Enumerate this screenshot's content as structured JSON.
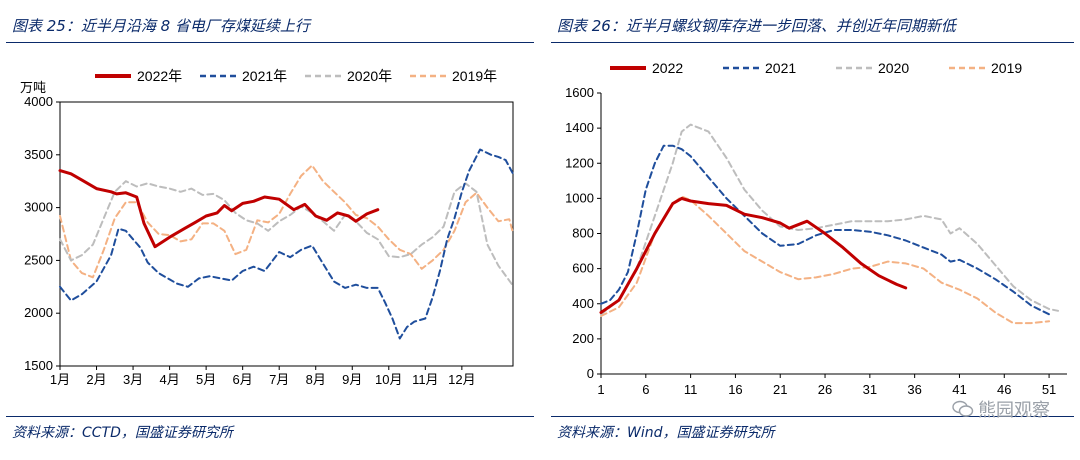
{
  "figures": {
    "left": {
      "title": "图表 25：近半月沿海 8 省电厂存煤延续上行",
      "source": "资料来源：CCTD，国盛证券研究所"
    },
    "right": {
      "title": "图表 26：近半月螺纹钢库存进一步回落、并创近年同期新低",
      "source": "资料来源：Wind，国盛证券研究所"
    }
  },
  "watermark": "熊园观察",
  "colors": {
    "2022": "#c00000",
    "2021": "#1f4e9c",
    "2020": "#bdbdbd",
    "2019": "#f4b183",
    "navy": "#0a2a6a"
  },
  "chart_data": [
    {
      "id": "coal",
      "type": "line",
      "title": "近半月沿海8省电厂存煤延续上行",
      "ylabel": "万吨",
      "ylim": [
        1500,
        4000
      ],
      "yticks": [
        1500,
        2000,
        2500,
        3000,
        3500,
        4000
      ],
      "xlim": [
        0,
        12.4
      ],
      "categories": [
        "1月",
        "2月",
        "3月",
        "4月",
        "5月",
        "6月",
        "7月",
        "8月",
        "9月",
        "10月",
        "11月",
        "12月"
      ],
      "legend": [
        "2022年",
        "2021年",
        "2020年",
        "2019年"
      ],
      "series": [
        {
          "name": "2022年",
          "style": "solid",
          "x": [
            0,
            0.3,
            0.6,
            1.0,
            1.4,
            1.55,
            1.8,
            2.1,
            2.3,
            2.6,
            3.0,
            3.4,
            3.7,
            4.0,
            4.3,
            4.5,
            4.7,
            5.0,
            5.3,
            5.6,
            6.0,
            6.4,
            6.7,
            7.0,
            7.3,
            7.6,
            7.9,
            8.1,
            8.4,
            8.7
          ],
          "y": [
            3350,
            3320,
            3260,
            3180,
            3150,
            3130,
            3140,
            3100,
            2850,
            2630,
            2720,
            2800,
            2860,
            2920,
            2950,
            3020,
            2970,
            3040,
            3060,
            3100,
            3080,
            2980,
            3030,
            2920,
            2880,
            2950,
            2920,
            2870,
            2940,
            2980
          ]
        },
        {
          "name": "2021年",
          "style": "dash",
          "x": [
            0,
            0.3,
            0.6,
            1.0,
            1.4,
            1.6,
            1.8,
            2.0,
            2.2,
            2.4,
            2.7,
            3.0,
            3.2,
            3.5,
            3.8,
            4.1,
            4.4,
            4.7,
            5.0,
            5.3,
            5.6,
            6.0,
            6.3,
            6.6,
            6.9,
            7.2,
            7.5,
            7.8,
            8.1,
            8.4,
            8.7,
            8.9,
            9.1,
            9.3,
            9.5,
            9.7,
            10.0,
            10.2,
            10.4,
            10.6,
            10.8,
            11.0,
            11.2,
            11.5,
            11.8,
            12.0,
            12.2,
            12.4
          ],
          "y": [
            2250,
            2120,
            2180,
            2300,
            2550,
            2800,
            2780,
            2700,
            2620,
            2480,
            2380,
            2320,
            2280,
            2250,
            2330,
            2350,
            2330,
            2310,
            2400,
            2440,
            2400,
            2580,
            2530,
            2600,
            2640,
            2470,
            2300,
            2240,
            2270,
            2240,
            2240,
            2100,
            1950,
            1760,
            1870,
            1920,
            1950,
            2150,
            2400,
            2700,
            2900,
            3150,
            3350,
            3550,
            3500,
            3480,
            3450,
            3320
          ]
        },
        {
          "name": "2020年",
          "style": "dash",
          "x": [
            0,
            0.3,
            0.6,
            0.9,
            1.2,
            1.5,
            1.8,
            2.1,
            2.4,
            2.7,
            3.0,
            3.3,
            3.6,
            3.9,
            4.2,
            4.5,
            4.8,
            5.1,
            5.4,
            5.7,
            6.0,
            6.3,
            6.6,
            6.9,
            7.2,
            7.5,
            7.8,
            8.1,
            8.4,
            8.7,
            9.0,
            9.3,
            9.6,
            9.9,
            10.2,
            10.5,
            10.8,
            11.1,
            11.4,
            11.7,
            12.0,
            12.4
          ],
          "y": [
            2700,
            2500,
            2550,
            2650,
            2900,
            3150,
            3250,
            3200,
            3230,
            3200,
            3180,
            3150,
            3180,
            3120,
            3130,
            3070,
            2950,
            2880,
            2850,
            2780,
            2870,
            2930,
            3010,
            2950,
            2870,
            2780,
            2930,
            2870,
            2760,
            2700,
            2540,
            2530,
            2560,
            2650,
            2720,
            2820,
            3150,
            3230,
            3150,
            2650,
            2450,
            2260
          ]
        },
        {
          "name": "2019年",
          "style": "dash",
          "x": [
            0,
            0.3,
            0.6,
            0.9,
            1.2,
            1.5,
            1.8,
            2.1,
            2.4,
            2.7,
            3.0,
            3.3,
            3.6,
            3.9,
            4.2,
            4.5,
            4.8,
            5.1,
            5.4,
            5.7,
            6.0,
            6.3,
            6.6,
            6.9,
            7.2,
            7.5,
            7.8,
            8.1,
            8.4,
            8.7,
            9.0,
            9.3,
            9.6,
            9.9,
            10.2,
            10.5,
            10.8,
            11.1,
            11.4,
            11.7,
            12.0,
            12.3,
            12.4
          ],
          "y": [
            2920,
            2500,
            2380,
            2340,
            2600,
            2900,
            3050,
            3050,
            2860,
            2750,
            2740,
            2680,
            2700,
            2850,
            2850,
            2780,
            2560,
            2600,
            2880,
            2860,
            2940,
            3130,
            3300,
            3400,
            3250,
            3150,
            3050,
            2930,
            2900,
            2820,
            2700,
            2600,
            2560,
            2420,
            2500,
            2600,
            2780,
            3050,
            3140,
            3000,
            2870,
            2890,
            2760
          ]
        }
      ]
    },
    {
      "id": "rebar",
      "type": "line",
      "title": "近半月螺纹钢库存进一步回落、并创近年同期新低",
      "ylim": [
        0,
        1600
      ],
      "yticks": [
        0,
        200,
        400,
        600,
        800,
        1000,
        1200,
        1400,
        1600
      ],
      "xlim": [
        1,
        53
      ],
      "xticks": [
        1,
        6,
        11,
        16,
        21,
        26,
        31,
        36,
        41,
        46,
        51
      ],
      "legend": [
        "2022",
        "2021",
        "2020",
        "2019"
      ],
      "series": [
        {
          "name": "2022",
          "style": "solid",
          "x": [
            1,
            3,
            5,
            7,
            9,
            10,
            11,
            13,
            15,
            17,
            19,
            21,
            22,
            24,
            26,
            28,
            30,
            32,
            34,
            35
          ],
          "y": [
            350,
            420,
            600,
            800,
            970,
            1000,
            985,
            970,
            960,
            910,
            890,
            860,
            830,
            870,
            800,
            720,
            630,
            560,
            510,
            490
          ]
        },
        {
          "name": "2021",
          "style": "dash",
          "x": [
            1,
            2,
            3,
            4,
            5,
            6,
            7,
            8,
            9,
            10,
            11,
            13,
            15,
            17,
            19,
            21,
            23,
            25,
            27,
            29,
            31,
            33,
            35,
            37,
            39,
            40,
            41,
            43,
            45,
            47,
            49,
            51
          ],
          "y": [
            400,
            420,
            480,
            580,
            800,
            1050,
            1200,
            1300,
            1300,
            1280,
            1240,
            1120,
            1000,
            900,
            800,
            730,
            740,
            790,
            820,
            820,
            810,
            790,
            760,
            720,
            680,
            640,
            650,
            600,
            540,
            470,
            390,
            340
          ]
        },
        {
          "name": "2020",
          "style": "dash",
          "x": [
            1,
            3,
            5,
            7,
            9,
            10,
            11,
            13,
            15,
            17,
            19,
            21,
            23,
            25,
            27,
            29,
            31,
            33,
            35,
            37,
            39,
            40,
            41,
            43,
            45,
            47,
            49,
            51,
            52
          ],
          "y": [
            340,
            420,
            600,
            900,
            1200,
            1380,
            1420,
            1380,
            1230,
            1050,
            930,
            840,
            820,
            830,
            850,
            870,
            870,
            870,
            880,
            900,
            880,
            800,
            830,
            740,
            620,
            500,
            420,
            370,
            360
          ]
        },
        {
          "name": "2019",
          "style": "dash",
          "x": [
            1,
            3,
            5,
            7,
            9,
            10,
            11,
            13,
            15,
            17,
            19,
            21,
            23,
            25,
            27,
            29,
            31,
            33,
            35,
            37,
            39,
            41,
            43,
            45,
            47,
            49,
            51
          ],
          "y": [
            330,
            380,
            520,
            800,
            970,
            1010,
            990,
            900,
            800,
            700,
            640,
            580,
            540,
            550,
            570,
            600,
            610,
            640,
            630,
            600,
            520,
            480,
            430,
            350,
            290,
            290,
            300
          ]
        }
      ]
    }
  ]
}
